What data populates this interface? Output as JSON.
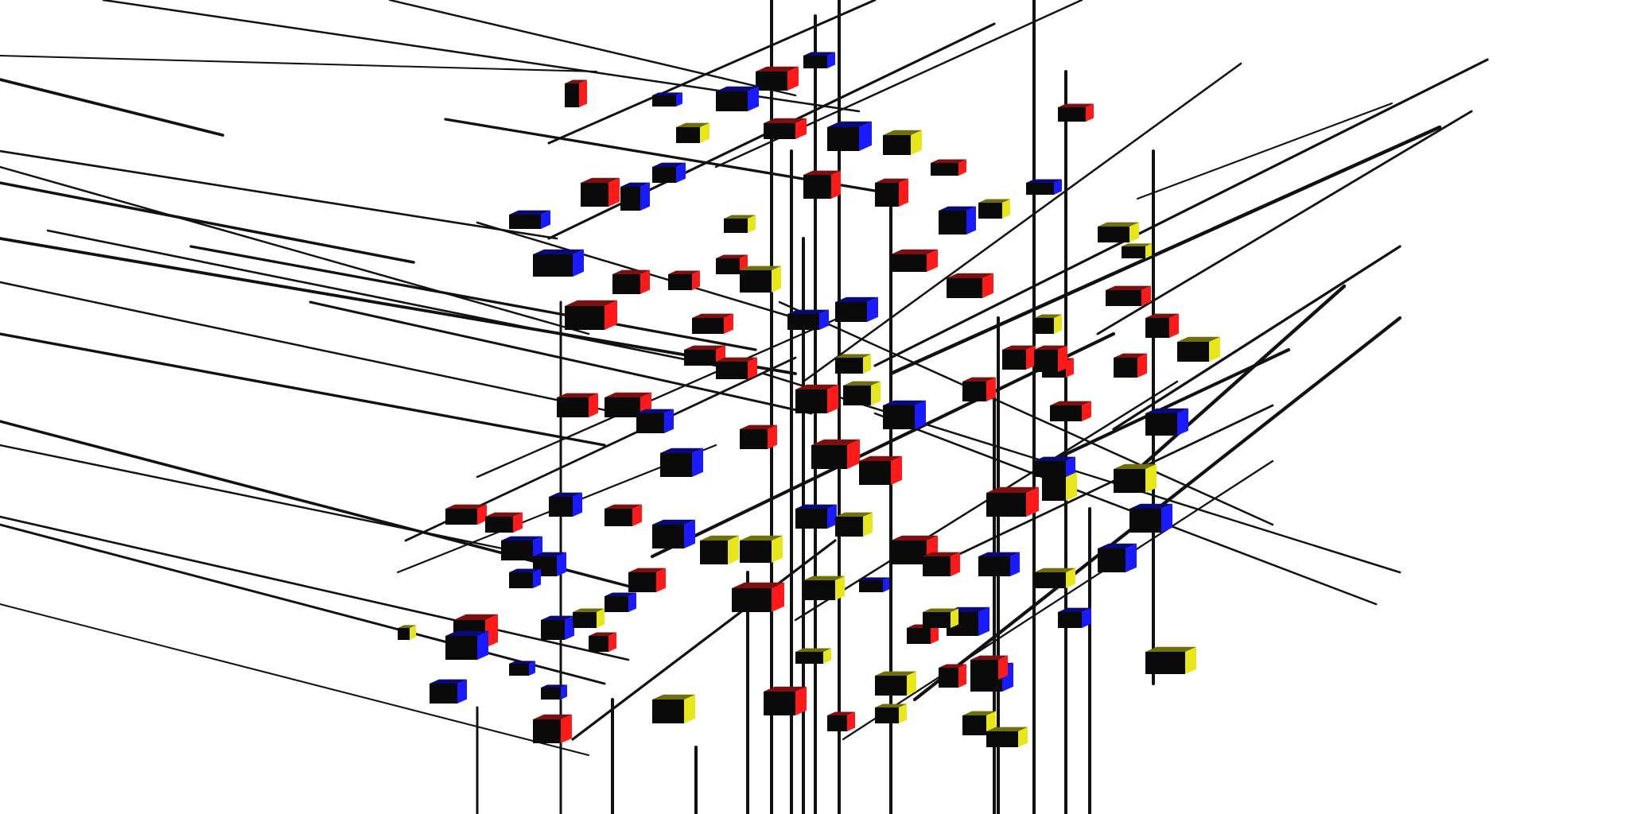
{
  "scene": {
    "description_style": "3D Mondrian-style lattice render",
    "colors": {
      "background": "#ffffff",
      "line": "#111111",
      "red": "#ff1a1a",
      "red_dark": "#7a1010",
      "blue": "#1a1aff",
      "blue_dark": "#0a0a77",
      "yellow": "#e6e61a",
      "yellow_dark": "#6f6f10",
      "black": "#0a0a0a"
    },
    "interactive": {
      "rotate_hint": ""
    }
  }
}
